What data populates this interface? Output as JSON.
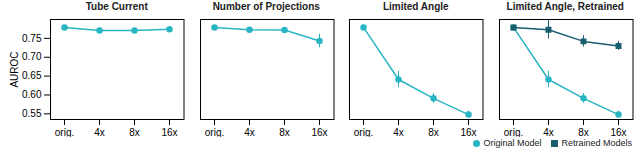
{
  "chart_data": [
    {
      "type": "line",
      "title": "Tube Current",
      "categories": [
        "orig.",
        "4x",
        "8x",
        "16x"
      ],
      "ylabel": "AUROC",
      "ylim": [
        0.535,
        0.8
      ],
      "yticks": [
        0.55,
        {
          "value": 0.6,
          "label": "0.60"
        },
        0.65,
        {
          "value": 0.7,
          "label": "0.70"
        },
        0.75
      ],
      "grid": false,
      "series": [
        {
          "color": "#29b5c3",
          "marker": "circle",
          "values": [
            0.779,
            0.771,
            0.771,
            0.774
          ],
          "errors": [
            0.005,
            0.005,
            0.005,
            0.005
          ]
        }
      ]
    },
    {
      "type": "line",
      "title": "Number of Projections",
      "categories": [
        "orig.",
        "4x",
        "8x",
        "16x"
      ],
      "ylim": [
        0.535,
        0.8
      ],
      "grid": false,
      "tick_labels": "x",
      "series": [
        {
          "color": "#29b5c3",
          "marker": "circle",
          "values": [
            0.779,
            0.773,
            0.772,
            0.743
          ],
          "errors": [
            0.005,
            0.005,
            0.005,
            0.018
          ]
        }
      ]
    },
    {
      "type": "line",
      "title": "Limited Angle",
      "categories": [
        "orig.",
        "4x",
        "8x",
        "16x"
      ],
      "ylim": [
        0.535,
        0.8
      ],
      "grid": false,
      "tick_labels": "x",
      "series": [
        {
          "color": "#29b5c3",
          "marker": "circle",
          "values": [
            0.779,
            0.641,
            0.591,
            0.548
          ],
          "errors": [
            0.005,
            0.022,
            0.013,
            0.009
          ]
        }
      ]
    },
    {
      "type": "line",
      "title": "Limited Angle, Retrained",
      "categories": [
        "orig.",
        "4x",
        "8x",
        "16x"
      ],
      "ylim": [
        0.535,
        0.8
      ],
      "grid": false,
      "tick_labels": "x",
      "legend": "bottom",
      "series": [
        {
          "name": "Original Model",
          "color": "#29b5c3",
          "marker": "circle",
          "values": [
            0.779,
            0.641,
            0.591,
            0.548
          ],
          "errors": [
            0.005,
            0.022,
            0.013,
            0.009
          ]
        },
        {
          "name": "Retrained Models",
          "color": "#1b5e6e",
          "marker": "square",
          "values": [
            0.779,
            0.773,
            0.742,
            0.73
          ],
          "errors": [
            0.005,
            0.025,
            0.015,
            0.012
          ]
        }
      ]
    }
  ]
}
